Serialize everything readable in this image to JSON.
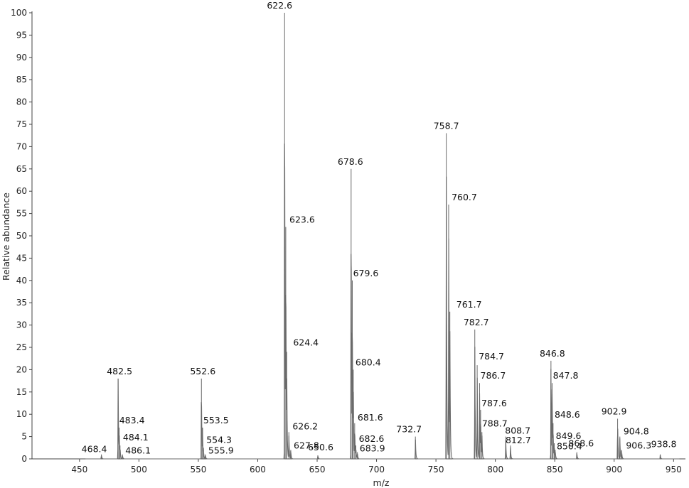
{
  "chart_data": {
    "type": "line",
    "xlabel": "m/z",
    "ylabel": "Relative abundance",
    "xlim": [
      410,
      960
    ],
    "ylim": [
      0,
      100
    ],
    "x_ticks": [
      450,
      500,
      550,
      600,
      650,
      700,
      750,
      800,
      850,
      900,
      950
    ],
    "y_ticks": [
      0,
      5,
      10,
      15,
      20,
      25,
      30,
      35,
      40,
      45,
      50,
      55,
      60,
      65,
      70,
      75,
      80,
      85,
      90,
      95,
      100
    ],
    "grid": false,
    "legend": "none",
    "line_color": "#6a6a6a",
    "peaks": [
      {
        "mz": 468.4,
        "intensity": 1,
        "label": "468.4"
      },
      {
        "mz": 482.5,
        "intensity": 18,
        "label": "482.5"
      },
      {
        "mz": 483.4,
        "intensity": 7,
        "label": "483.4"
      },
      {
        "mz": 484.1,
        "intensity": 3,
        "label": "484.1"
      },
      {
        "mz": 486.1,
        "intensity": 1,
        "label": "486.1"
      },
      {
        "mz": 552.6,
        "intensity": 18,
        "label": "552.6"
      },
      {
        "mz": 553.5,
        "intensity": 7,
        "label": "553.5"
      },
      {
        "mz": 554.3,
        "intensity": 2.5,
        "label": "554.3"
      },
      {
        "mz": 555.9,
        "intensity": 1,
        "label": "555.9"
      },
      {
        "mz": 622.6,
        "intensity": 100,
        "label": "622.6"
      },
      {
        "mz": 623.6,
        "intensity": 52,
        "label": "623.6"
      },
      {
        "mz": 624.4,
        "intensity": 24,
        "label": "624.4"
      },
      {
        "mz": 626.2,
        "intensity": 6,
        "label": "626.2"
      },
      {
        "mz": 627.8,
        "intensity": 2,
        "label": "627.8"
      },
      {
        "mz": 650.6,
        "intensity": 0.8,
        "label": "650.6"
      },
      {
        "mz": 678.6,
        "intensity": 65,
        "label": "678.6"
      },
      {
        "mz": 679.6,
        "intensity": 40,
        "label": "679.6"
      },
      {
        "mz": 680.4,
        "intensity": 20,
        "label": "680.4"
      },
      {
        "mz": 681.6,
        "intensity": 8,
        "label": "681.6"
      },
      {
        "mz": 682.6,
        "intensity": 3,
        "label": "682.6"
      },
      {
        "mz": 683.9,
        "intensity": 1.5,
        "label": "683.9"
      },
      {
        "mz": 732.7,
        "intensity": 5,
        "label": "732.7"
      },
      {
        "mz": 758.7,
        "intensity": 73,
        "label": "758.7"
      },
      {
        "mz": 760.7,
        "intensity": 57,
        "label": "760.7"
      },
      {
        "mz": 761.7,
        "intensity": 33,
        "label": "761.7"
      },
      {
        "mz": 782.7,
        "intensity": 29,
        "label": "782.7"
      },
      {
        "mz": 784.7,
        "intensity": 21,
        "label": "784.7"
      },
      {
        "mz": 786.7,
        "intensity": 17,
        "label": "786.7"
      },
      {
        "mz": 787.6,
        "intensity": 11,
        "label": "787.6"
      },
      {
        "mz": 788.7,
        "intensity": 6,
        "label": "788.7"
      },
      {
        "mz": 808.7,
        "intensity": 5,
        "label": "808.7"
      },
      {
        "mz": 812.7,
        "intensity": 3,
        "label": "812.7"
      },
      {
        "mz": 846.8,
        "intensity": 22,
        "label": "846.8"
      },
      {
        "mz": 847.8,
        "intensity": 17,
        "label": "847.8"
      },
      {
        "mz": 848.6,
        "intensity": 8,
        "label": "848.6"
      },
      {
        "mz": 849.6,
        "intensity": 3.5,
        "label": "849.6"
      },
      {
        "mz": 850.4,
        "intensity": 2,
        "label": "850.4"
      },
      {
        "mz": 868.6,
        "intensity": 1.5,
        "label": "868.6"
      },
      {
        "mz": 902.9,
        "intensity": 9,
        "label": "902.9"
      },
      {
        "mz": 904.8,
        "intensity": 5,
        "label": "904.8"
      },
      {
        "mz": 906.3,
        "intensity": 2,
        "label": "906.3"
      },
      {
        "mz": 938.8,
        "intensity": 1,
        "label": "938.8"
      }
    ]
  }
}
